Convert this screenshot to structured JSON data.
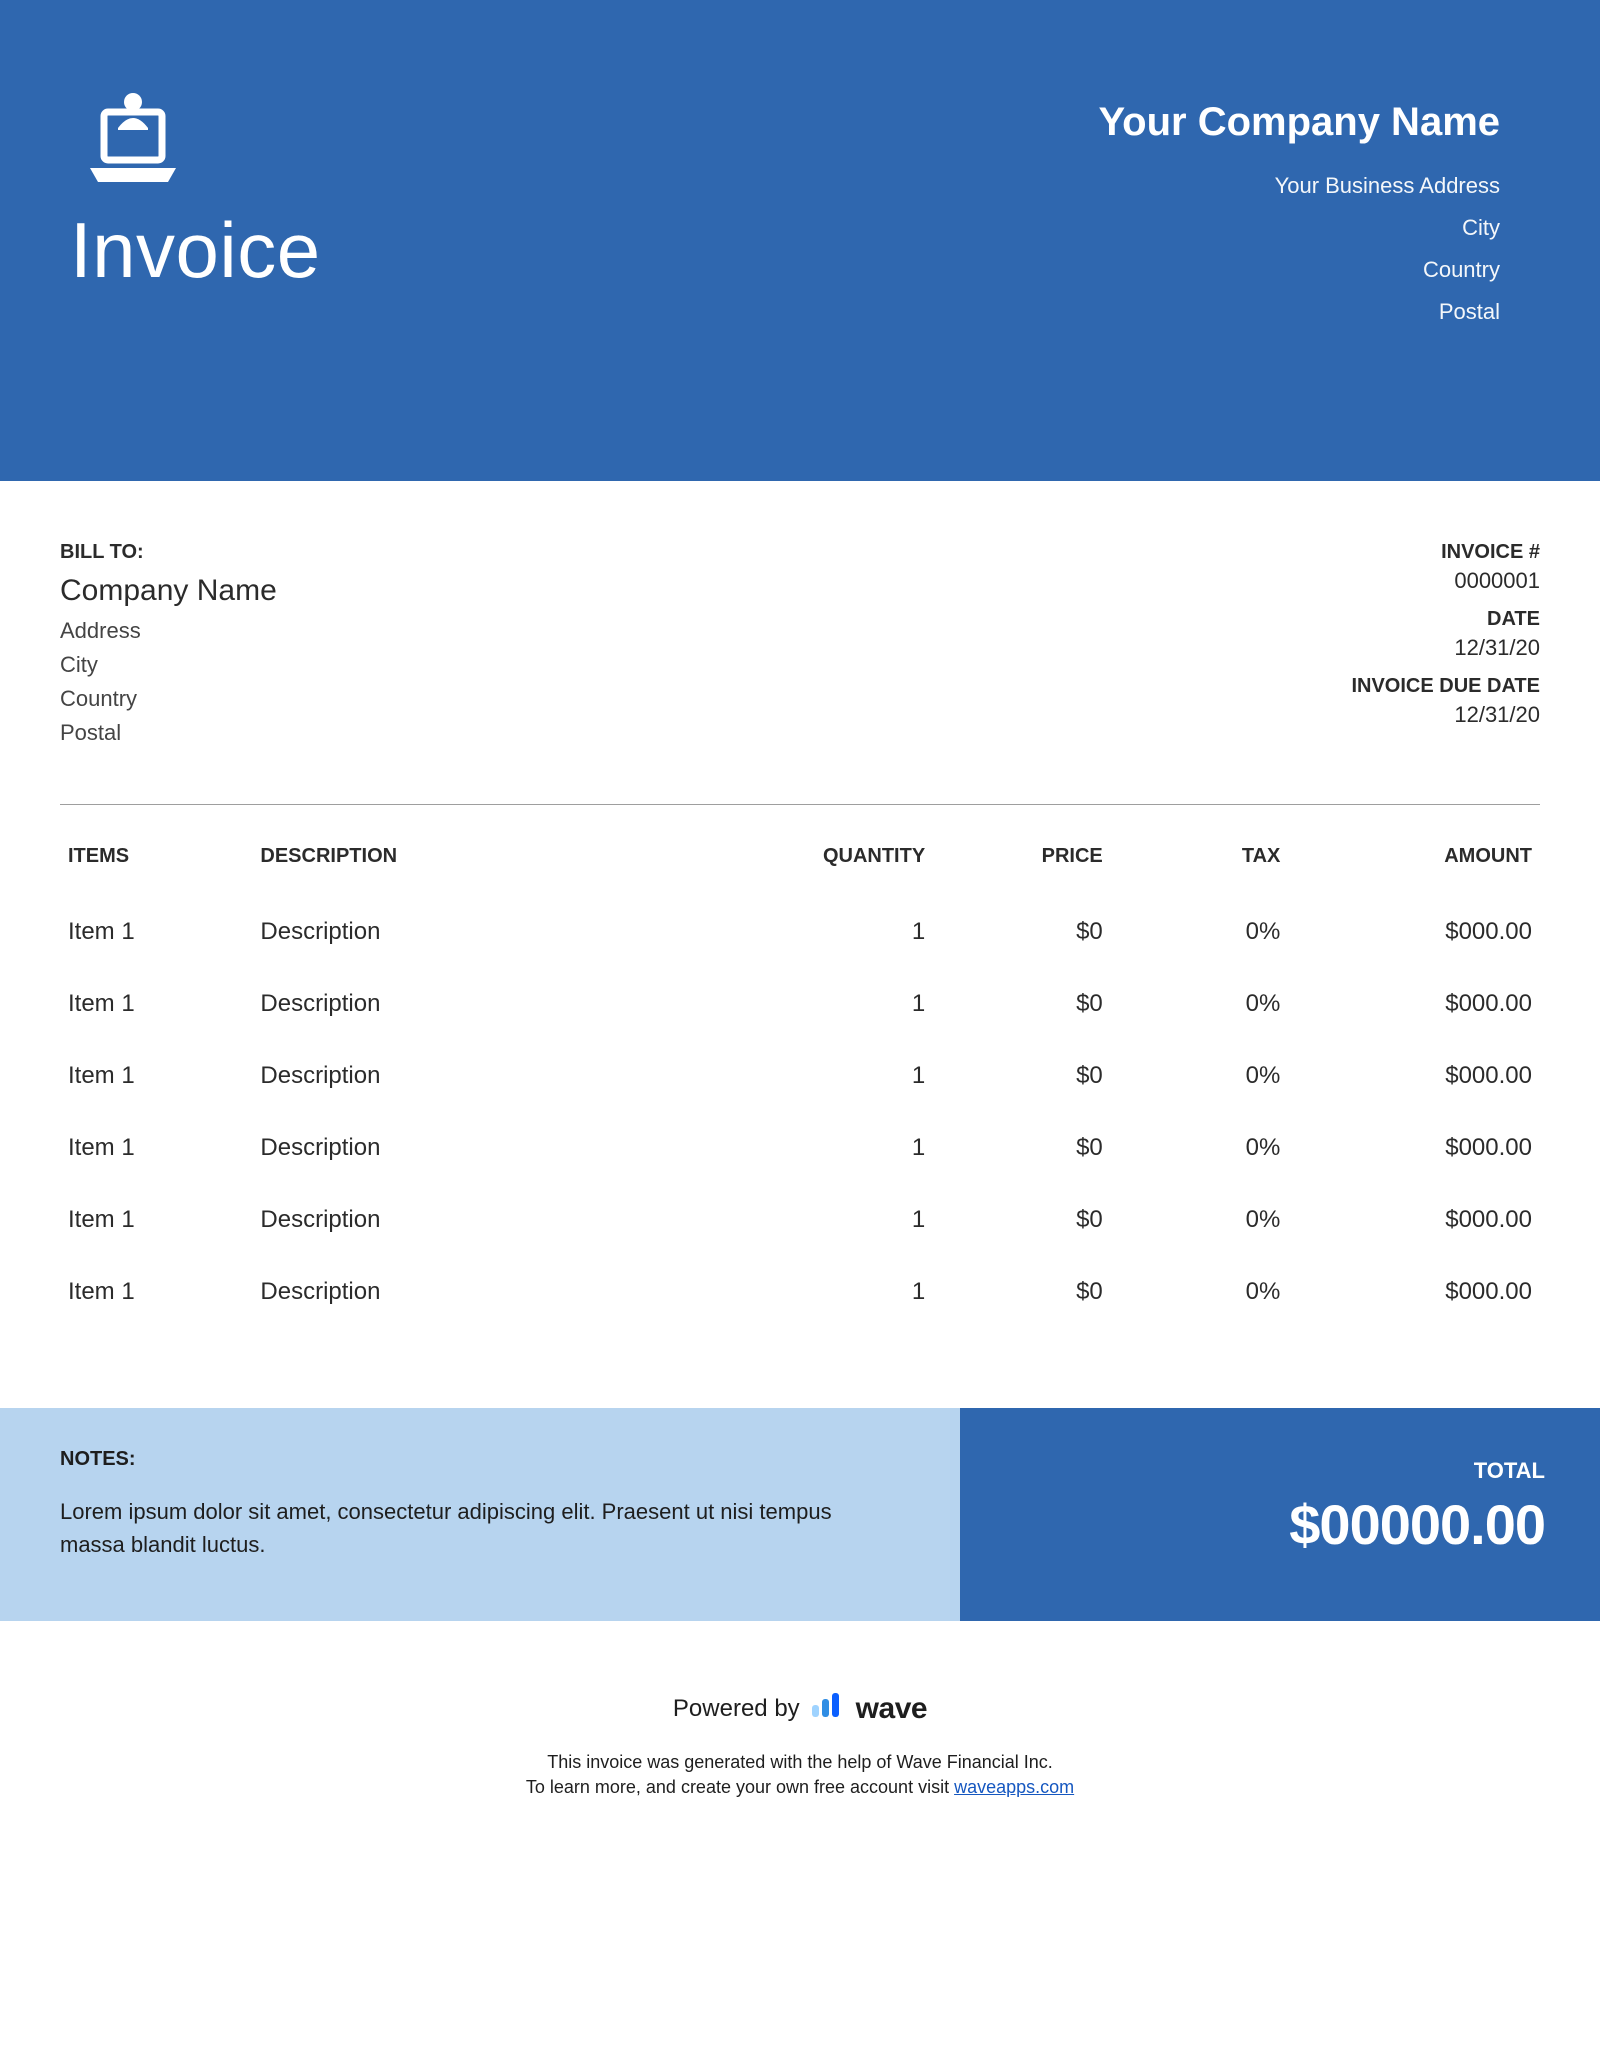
{
  "colors": {
    "header_bg": "#2f67af",
    "notes_bg": "#b7d4ef",
    "total_bg": "#2f67af",
    "text": "#2b2b2b",
    "divider": "#9e9e9e",
    "link": "#1557c0"
  },
  "header": {
    "doc_title": "Invoice",
    "company_name": "Your Company Name",
    "address": "Your Business Address",
    "city": "City",
    "country": "Country",
    "postal": "Postal"
  },
  "bill_to": {
    "label": "BILL TO:",
    "company": "Company Name",
    "address": "Address",
    "city": "City",
    "country": "Country",
    "postal": "Postal"
  },
  "meta": {
    "invoice_num_label": "INVOICE #",
    "invoice_num": "0000001",
    "date_label": "DATE",
    "date": "12/31/20",
    "due_label": "INVOICE DUE DATE",
    "due": "12/31/20"
  },
  "table": {
    "columns": {
      "items": "ITEMS",
      "description": "DESCRIPTION",
      "quantity": "QUANTITY",
      "price": "PRICE",
      "tax": "TAX",
      "amount": "AMOUNT"
    },
    "rows": [
      {
        "item": "Item 1",
        "desc": "Description",
        "qty": "1",
        "price": "$0",
        "tax": "0%",
        "amount": "$000.00"
      },
      {
        "item": "Item 1",
        "desc": "Description",
        "qty": "1",
        "price": "$0",
        "tax": "0%",
        "amount": "$000.00"
      },
      {
        "item": "Item 1",
        "desc": "Description",
        "qty": "1",
        "price": "$0",
        "tax": "0%",
        "amount": "$000.00"
      },
      {
        "item": "Item 1",
        "desc": "Description",
        "qty": "1",
        "price": "$0",
        "tax": "0%",
        "amount": "$000.00"
      },
      {
        "item": "Item 1",
        "desc": "Description",
        "qty": "1",
        "price": "$0",
        "tax": "0%",
        "amount": "$000.00"
      },
      {
        "item": "Item 1",
        "desc": "Description",
        "qty": "1",
        "price": "$0",
        "tax": "0%",
        "amount": "$000.00"
      }
    ]
  },
  "notes": {
    "label": "NOTES:",
    "text": "Lorem ipsum dolor sit amet, consectetur adipiscing elit. Praesent ut nisi tempus massa blandit luctus."
  },
  "total": {
    "label": "TOTAL",
    "value": "$00000.00"
  },
  "footer": {
    "powered_by": "Powered by",
    "brand": "wave",
    "line1": "This invoice was generated with the help of Wave Financial Inc.",
    "line2_a": "To learn more, and create your own free account visit ",
    "line2_link": "waveapps.com"
  }
}
